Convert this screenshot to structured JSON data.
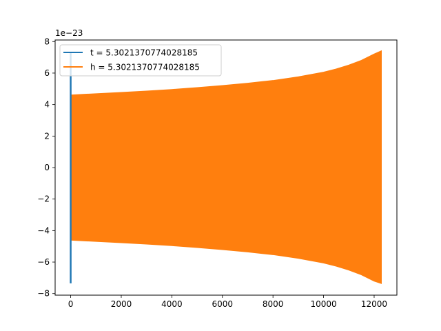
{
  "chart_data": {
    "type": "line",
    "title": "",
    "xlabel": "",
    "ylabel": "",
    "y_offset_label": "1e−23",
    "xlim": [
      -615,
      12900
    ],
    "ylim": [
      -8.1,
      8.1
    ],
    "x_ticks": [
      0,
      2000,
      4000,
      6000,
      8000,
      10000,
      12000
    ],
    "x_tick_labels": [
      "0",
      "2000",
      "4000",
      "6000",
      "8000",
      "10000",
      "12000"
    ],
    "y_ticks": [
      -8,
      -6,
      -4,
      -2,
      0,
      2,
      4,
      6,
      8
    ],
    "y_tick_labels": [
      "−8",
      "−6",
      "−4",
      "−2",
      "0",
      "2",
      "4",
      "6",
      "8"
    ],
    "grid": false,
    "legend": {
      "placement": "top-left"
    },
    "series": [
      {
        "name": "t = 5.3021370774028185",
        "color": "#1f77b4",
        "points": [
          [
            0,
            -7.35
          ],
          [
            0,
            7.35
          ],
          [
            0,
            0
          ]
        ]
      },
      {
        "name": "h = 5.3021370774028185",
        "color": "#ff7f0e",
        "fill_band": true,
        "envelope_x": [
          0,
          1000,
          2000,
          3000,
          4000,
          5000,
          6000,
          7000,
          8000,
          9000,
          10000,
          10500,
          11000,
          11500,
          12000,
          12280
        ],
        "envelope_upper": [
          4.6,
          4.68,
          4.76,
          4.85,
          4.95,
          5.07,
          5.2,
          5.35,
          5.52,
          5.75,
          6.05,
          6.25,
          6.5,
          6.8,
          7.2,
          7.4
        ],
        "envelope_lower": [
          -4.6,
          -4.68,
          -4.76,
          -4.85,
          -4.95,
          -5.07,
          -5.2,
          -5.35,
          -5.52,
          -5.75,
          -6.05,
          -6.25,
          -6.5,
          -6.8,
          -7.2,
          -7.35
        ]
      }
    ]
  }
}
